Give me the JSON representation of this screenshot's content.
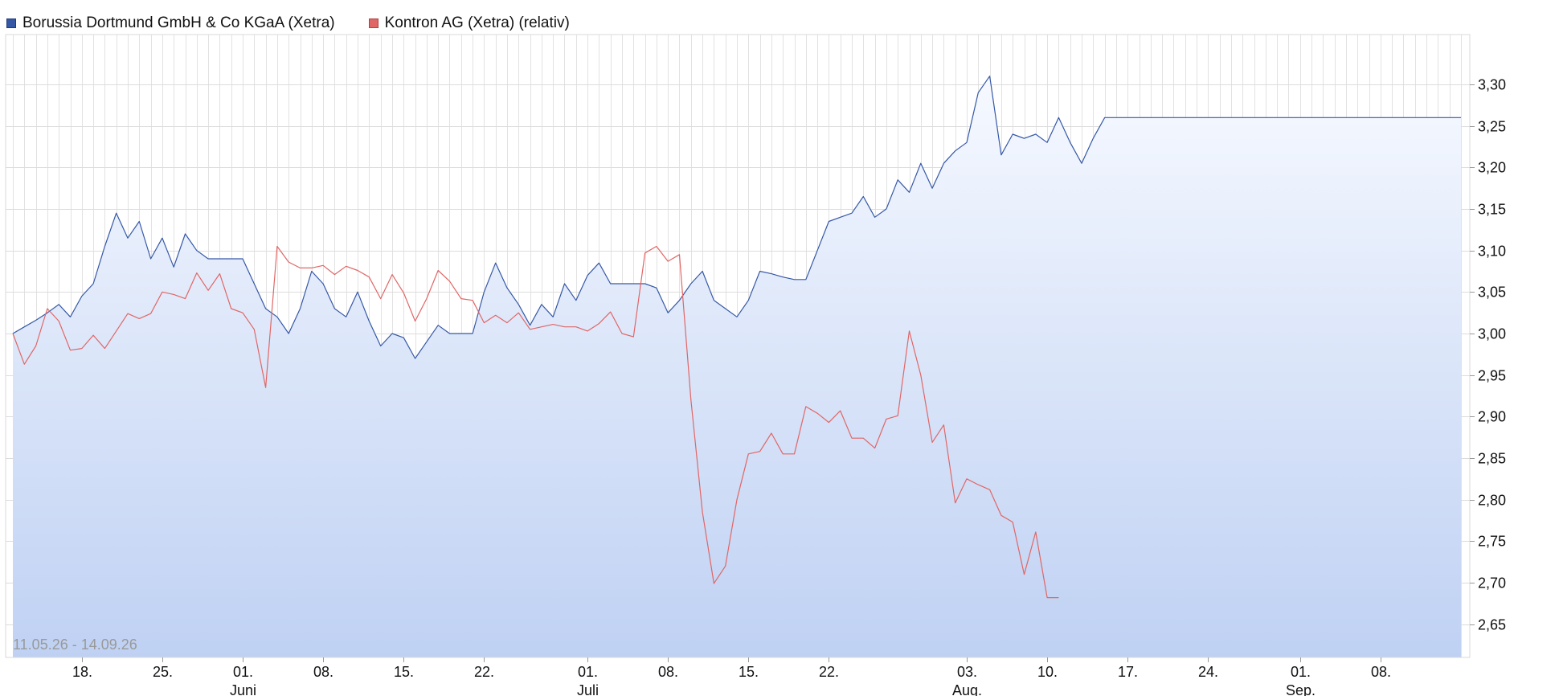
{
  "legend": [
    {
      "label": "Borussia Dortmund GmbH & Co KGaA (Xetra)",
      "color": "#3558a6"
    },
    {
      "label": "Kontron AG (Xetra) (relativ)",
      "color": "#e06666"
    }
  ],
  "date_range": "11.05.26 - 14.09.26",
  "chart_data": {
    "type": "line",
    "title": "",
    "xlabel": "",
    "ylabel": "",
    "ylim": [
      2.61,
      3.36
    ],
    "y_ticks": [
      "3,30",
      "3,25",
      "3,20",
      "3,15",
      "3,10",
      "3,05",
      "3,00",
      "2,95",
      "2,90",
      "2,85",
      "2,80",
      "2,75",
      "2,70",
      "2,65"
    ],
    "x_ticks": [
      {
        "day": 6,
        "label": "18."
      },
      {
        "day": 13,
        "label": "25."
      },
      {
        "day": 20,
        "label": "01.",
        "month": "Juni"
      },
      {
        "day": 27,
        "label": "08."
      },
      {
        "day": 34,
        "label": "15."
      },
      {
        "day": 41,
        "label": "22."
      },
      {
        "day": 50,
        "label": "01.",
        "month": "Juli"
      },
      {
        "day": 57,
        "label": "08."
      },
      {
        "day": 64,
        "label": "15."
      },
      {
        "day": 71,
        "label": "22."
      },
      {
        "day": 83,
        "label": "03.",
        "month": "Aug."
      },
      {
        "day": 90,
        "label": "10."
      },
      {
        "day": 97,
        "label": "17."
      },
      {
        "day": 104,
        "label": "24."
      },
      {
        "day": 112,
        "label": "01.",
        "month": "Sep."
      },
      {
        "day": 119,
        "label": "08."
      }
    ],
    "x_range": [
      0,
      126
    ],
    "grid": true,
    "series": [
      {
        "name": "Borussia Dortmund GmbH & Co KGaA (Xetra)",
        "color": "#3558a6",
        "fill": true,
        "x": [
          0,
          1,
          2,
          3,
          4,
          5,
          6,
          7,
          8,
          9,
          10,
          11,
          12,
          13,
          14,
          15,
          16,
          17,
          18,
          19,
          20,
          21,
          22,
          23,
          24,
          25,
          26,
          27,
          28,
          29,
          30,
          31,
          32,
          33,
          34,
          35,
          36,
          37,
          38,
          39,
          40,
          41,
          42,
          43,
          44,
          45,
          46,
          47,
          48,
          49,
          50,
          51,
          52,
          53,
          54,
          55,
          56,
          57,
          58,
          59,
          60,
          61,
          62,
          63,
          64,
          65,
          66,
          67,
          68,
          69,
          70,
          71,
          72,
          73,
          74,
          75,
          76,
          77,
          78,
          79,
          80,
          81,
          82,
          83,
          84,
          85,
          86,
          87,
          88,
          89,
          90,
          91,
          92,
          93,
          94,
          95,
          96,
          97,
          98,
          99,
          100,
          101,
          102,
          103,
          104,
          105,
          106,
          107,
          108,
          109,
          110,
          111,
          112,
          113,
          114,
          115,
          116,
          117,
          118,
          119,
          120,
          121,
          122,
          123,
          124,
          125,
          126
        ],
        "y": [
          3.0,
          3.008,
          3.016,
          3.025,
          3.035,
          3.02,
          3.045,
          3.06,
          3.105,
          3.145,
          3.115,
          3.135,
          3.09,
          3.115,
          3.08,
          3.12,
          3.1,
          3.09,
          3.09,
          3.09,
          3.09,
          3.06,
          3.03,
          3.02,
          3.0,
          3.03,
          3.075,
          3.06,
          3.03,
          3.02,
          3.05,
          3.015,
          2.985,
          3.0,
          2.995,
          2.97,
          2.99,
          3.01,
          3.0,
          3.0,
          3.0,
          3.05,
          3.085,
          3.055,
          3.035,
          3.01,
          3.035,
          3.02,
          3.06,
          3.04,
          3.07,
          3.085,
          3.06,
          3.06,
          3.06,
          3.06,
          3.055,
          3.025,
          3.04,
          3.06,
          3.075,
          3.04,
          3.03,
          3.02,
          3.04,
          3.075,
          3.072,
          3.068,
          3.065,
          3.065,
          3.1,
          3.135,
          3.14,
          3.145,
          3.165,
          3.14,
          3.15,
          3.185,
          3.17,
          3.205,
          3.175,
          3.205,
          3.22,
          3.23,
          3.29,
          3.31,
          3.215,
          3.24,
          3.235,
          3.24,
          3.23,
          3.26,
          3.23,
          3.205,
          3.235,
          3.26,
          3.26,
          3.26,
          3.26,
          3.26,
          3.26,
          3.26,
          3.26,
          3.26,
          3.26,
          3.26,
          3.26,
          3.26,
          3.26,
          3.26,
          3.26,
          3.26,
          3.26,
          3.26,
          3.26,
          3.26,
          3.26,
          3.26,
          3.26,
          3.26,
          3.26,
          3.26,
          3.26,
          3.26,
          3.26,
          3.26,
          3.26
        ]
      },
      {
        "name": "Kontron AG (Xetra) (relativ)",
        "color": "#e06666",
        "fill": false,
        "x": [
          0,
          1,
          2,
          3,
          4,
          5,
          6,
          7,
          8,
          9,
          10,
          11,
          12,
          13,
          14,
          15,
          16,
          17,
          18,
          19,
          20,
          21,
          22,
          23,
          24,
          25,
          26,
          27,
          28,
          29,
          30,
          31,
          32,
          33,
          34,
          35,
          36,
          37,
          38,
          39,
          40,
          41,
          42,
          43,
          44,
          45,
          46,
          47,
          48,
          49,
          50,
          51,
          52,
          53,
          54,
          55,
          56,
          57,
          58,
          59,
          60,
          61,
          62,
          63,
          64,
          65,
          66,
          67,
          68,
          69,
          70,
          71,
          72,
          73,
          74,
          75,
          76,
          77,
          78,
          79,
          80,
          81,
          82,
          83,
          84,
          85,
          86,
          87,
          88,
          89,
          90,
          91
        ],
        "y": [
          3.0,
          2.963,
          2.985,
          3.03,
          3.015,
          2.98,
          2.982,
          2.998,
          2.982,
          3.003,
          3.024,
          3.018,
          3.024,
          3.05,
          3.047,
          3.042,
          3.073,
          3.052,
          3.072,
          3.03,
          3.025,
          3.005,
          2.935,
          3.105,
          3.086,
          3.079,
          3.079,
          3.082,
          3.071,
          3.081,
          3.076,
          3.068,
          3.042,
          3.071,
          3.049,
          3.015,
          3.042,
          3.076,
          3.063,
          3.042,
          3.04,
          3.013,
          3.022,
          3.013,
          3.025,
          3.005,
          3.008,
          3.011,
          3.008,
          3.008,
          3.003,
          3.012,
          3.026,
          3.0,
          2.996,
          3.097,
          3.105,
          3.087,
          3.095,
          2.92,
          2.785,
          2.699,
          2.72,
          2.8,
          2.855,
          2.858,
          2.88,
          2.855,
          2.855,
          2.912,
          2.904,
          2.893,
          2.907,
          2.874,
          2.874,
          2.862,
          2.897,
          2.901,
          3.003,
          2.95,
          2.869,
          2.89,
          2.796,
          2.825,
          2.818,
          2.812,
          2.781,
          2.773,
          2.71,
          2.761,
          2.682,
          2.682
        ]
      }
    ]
  }
}
